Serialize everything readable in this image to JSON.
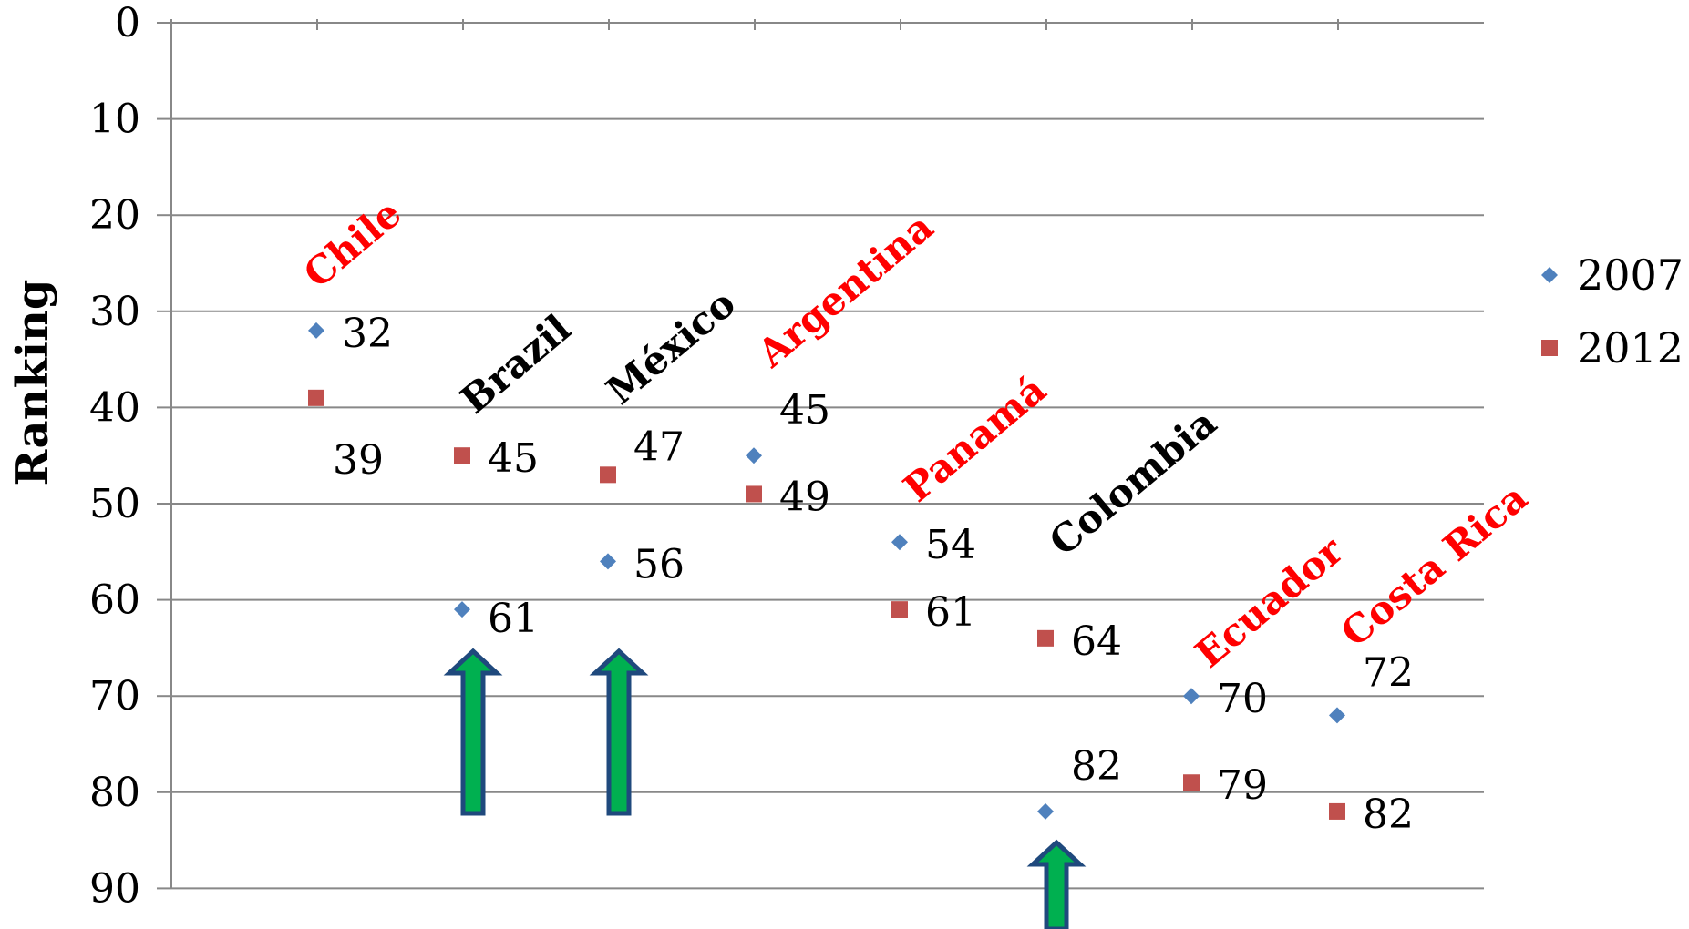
{
  "chart_data": {
    "type": "scatter",
    "ylabel": "Ranking",
    "ylim": [
      0,
      90
    ],
    "y_inverted": true,
    "y_ticks": [
      "0",
      "10",
      "20",
      "30",
      "40",
      "50",
      "60",
      "70",
      "80",
      "90"
    ],
    "grid": true,
    "legend_placement": "right",
    "categories": [
      {
        "label": "Chile",
        "color": "#ff0000"
      },
      {
        "label": "Brazil",
        "color": "#000000"
      },
      {
        "label": "México",
        "color": "#000000"
      },
      {
        "label": "Argentina",
        "color": "#ff0000"
      },
      {
        "label": "Panamá",
        "color": "#ff0000"
      },
      {
        "label": "Colombia",
        "color": "#000000"
      },
      {
        "label": "Ecuador",
        "color": "#ff0000"
      },
      {
        "label": "Costa Rica",
        "color": "#ff0000"
      }
    ],
    "series": [
      {
        "name": "2007",
        "marker": "diamond",
        "color": "#4f81bd",
        "values": [
          32,
          61,
          56,
          45,
          54,
          82,
          70,
          72
        ],
        "labels": [
          "32",
          "61",
          "56",
          "45",
          "54",
          "82",
          "70",
          "72"
        ]
      },
      {
        "name": "2012",
        "marker": "square",
        "color": "#c0504d",
        "values": [
          39,
          45,
          47,
          49,
          61,
          64,
          79,
          82
        ],
        "labels": [
          "39",
          "45",
          "47",
          "49",
          "61",
          "64",
          "79",
          "82"
        ]
      }
    ],
    "annotations": [
      {
        "type": "up-arrow",
        "category": "Brazil",
        "fill": "#00b050",
        "stroke": "#1f497d"
      },
      {
        "type": "up-arrow",
        "category": "México",
        "fill": "#00b050",
        "stroke": "#1f497d"
      },
      {
        "type": "up-arrow",
        "category": "Colombia",
        "fill": "#00b050",
        "stroke": "#1f497d"
      }
    ]
  }
}
